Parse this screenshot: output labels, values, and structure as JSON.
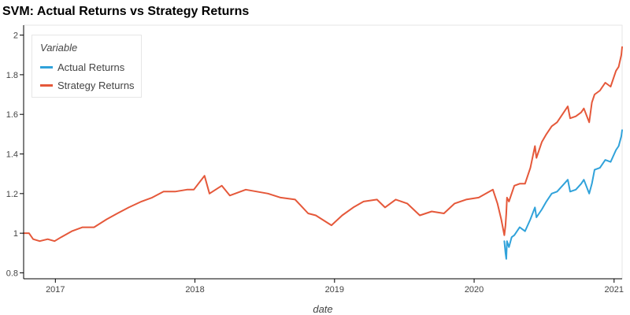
{
  "chart_data": {
    "type": "line",
    "title": "SVM: Actual Returns vs Strategy Returns",
    "xlabel": "date",
    "ylabel": "",
    "legend_title": "Variable",
    "legend_position": "top-left",
    "grid": false,
    "xlim": [
      "2016-10-10",
      "2021-01-22"
    ],
    "ylim": [
      0.77,
      2.05
    ],
    "x_ticks": [
      "2017",
      "2018",
      "2019",
      "2020",
      "2021"
    ],
    "y_ticks": [
      0.8,
      1,
      1.2,
      1.4,
      1.6,
      1.8,
      2
    ],
    "y_tick_labels": [
      "0.8",
      "1",
      "1.2",
      "1.4",
      "1.6",
      "1.8",
      "2"
    ],
    "series": [
      {
        "name": "Actual Returns",
        "color": "#30a2da",
        "x": [
          "2020-03-20",
          "2020-03-23",
          "2020-03-25",
          "2020-03-27",
          "2020-04-01",
          "2020-04-08",
          "2020-04-15",
          "2020-04-29",
          "2020-05-13",
          "2020-05-27",
          "2020-06-08",
          "2020-06-12",
          "2020-06-26",
          "2020-07-08",
          "2020-07-22",
          "2020-08-05",
          "2020-08-19",
          "2020-09-02",
          "2020-09-08",
          "2020-09-23",
          "2020-10-07",
          "2020-10-14",
          "2020-10-28",
          "2020-11-04",
          "2020-11-11",
          "2020-11-25",
          "2020-12-09",
          "2020-12-23",
          "2021-01-06",
          "2021-01-13",
          "2021-01-20",
          "2021-01-22"
        ],
        "values": [
          0.96,
          0.9,
          0.87,
          0.96,
          0.93,
          0.98,
          0.99,
          1.03,
          1.01,
          1.07,
          1.13,
          1.08,
          1.12,
          1.16,
          1.2,
          1.21,
          1.24,
          1.27,
          1.21,
          1.22,
          1.25,
          1.27,
          1.2,
          1.25,
          1.32,
          1.33,
          1.37,
          1.36,
          1.42,
          1.44,
          1.49,
          1.52
        ]
      },
      {
        "name": "Strategy Returns",
        "color": "#e5583a",
        "x": [
          "2016-10-10",
          "2016-10-24",
          "2016-11-04",
          "2016-11-21",
          "2016-12-12",
          "2016-12-30",
          "2017-01-16",
          "2017-02-13",
          "2017-03-13",
          "2017-04-12",
          "2017-05-15",
          "2017-06-12",
          "2017-07-12",
          "2017-08-14",
          "2017-09-11",
          "2017-10-11",
          "2017-11-10",
          "2017-12-11",
          "2017-12-29",
          "2018-01-26",
          "2018-02-08",
          "2018-03-12",
          "2018-04-02",
          "2018-05-14",
          "2018-06-12",
          "2018-07-11",
          "2018-08-13",
          "2018-09-20",
          "2018-10-24",
          "2018-11-13",
          "2018-12-24",
          "2019-01-21",
          "2019-02-19",
          "2019-03-18",
          "2019-04-22",
          "2019-05-13",
          "2019-06-10",
          "2019-07-10",
          "2019-08-12",
          "2019-09-12",
          "2019-10-14",
          "2019-11-11",
          "2019-12-11",
          "2020-01-13",
          "2020-02-19",
          "2020-03-02",
          "2020-03-12",
          "2020-03-20",
          "2020-03-23",
          "2020-03-25",
          "2020-03-27",
          "2020-04-01",
          "2020-04-08",
          "2020-04-15",
          "2020-04-29",
          "2020-05-13",
          "2020-05-27",
          "2020-06-08",
          "2020-06-12",
          "2020-06-26",
          "2020-07-08",
          "2020-07-22",
          "2020-08-05",
          "2020-08-19",
          "2020-09-02",
          "2020-09-08",
          "2020-09-23",
          "2020-10-07",
          "2020-10-14",
          "2020-10-28",
          "2020-11-04",
          "2020-11-11",
          "2020-11-25",
          "2020-12-09",
          "2020-12-23",
          "2021-01-06",
          "2021-01-13",
          "2021-01-20",
          "2021-01-22"
        ],
        "values": [
          1.0,
          1.0,
          0.97,
          0.96,
          0.97,
          0.96,
          0.98,
          1.01,
          1.03,
          1.03,
          1.07,
          1.1,
          1.13,
          1.16,
          1.18,
          1.21,
          1.21,
          1.22,
          1.22,
          1.29,
          1.2,
          1.24,
          1.19,
          1.22,
          1.21,
          1.2,
          1.18,
          1.17,
          1.1,
          1.09,
          1.04,
          1.09,
          1.13,
          1.16,
          1.17,
          1.13,
          1.17,
          1.15,
          1.09,
          1.11,
          1.1,
          1.15,
          1.17,
          1.18,
          1.22,
          1.15,
          1.07,
          0.99,
          1.04,
          1.1,
          1.18,
          1.16,
          1.2,
          1.24,
          1.25,
          1.25,
          1.33,
          1.44,
          1.38,
          1.46,
          1.5,
          1.54,
          1.56,
          1.6,
          1.64,
          1.58,
          1.59,
          1.61,
          1.63,
          1.56,
          1.66,
          1.7,
          1.72,
          1.76,
          1.74,
          1.82,
          1.84,
          1.9,
          1.94
        ]
      }
    ]
  }
}
